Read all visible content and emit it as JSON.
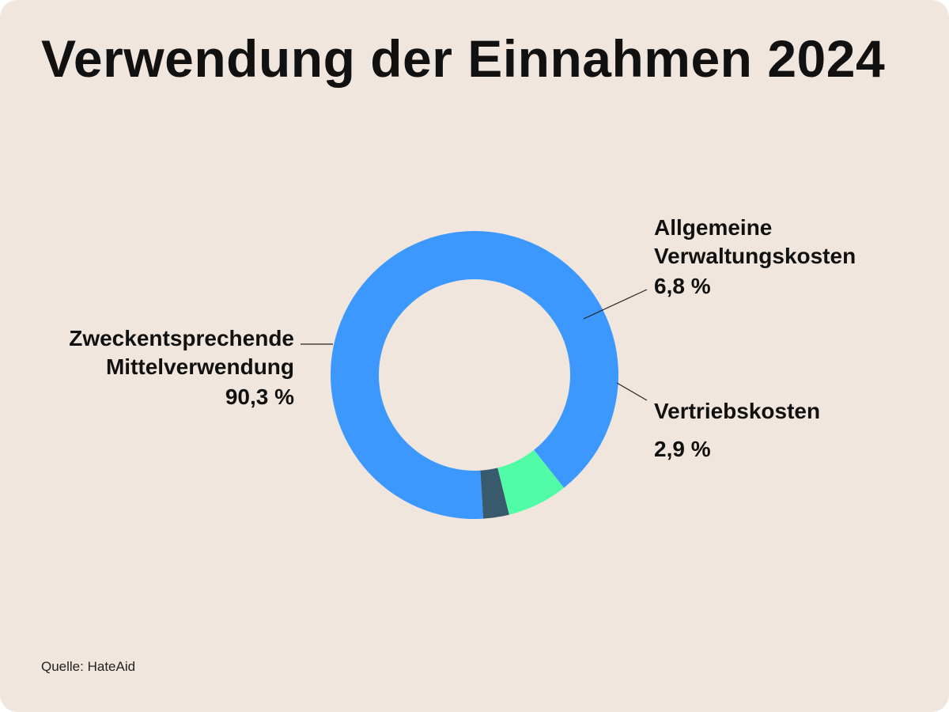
{
  "title": "Verwendung der Einnahmen 2024",
  "source": "Quelle: HateAid",
  "chart_data": {
    "type": "pie",
    "variant": "donut",
    "title": "Verwendung der Einnahmen 2024",
    "categories": [
      "Zweckentsprechende Mittelverwendung",
      "Allgemeine Verwaltungskosten",
      "Vertriebskosten"
    ],
    "values": [
      90.3,
      6.8,
      2.9
    ],
    "unit": "%",
    "colors": [
      "#3d98fd",
      "#52fba5",
      "#395a6d"
    ],
    "slices": [
      {
        "label_lines": [
          "Zweckentsprechende",
          "Mittelverwendung"
        ],
        "value_text": "90,3 %"
      },
      {
        "label_lines": [
          "Allgemeine",
          "Verwaltungskosten"
        ],
        "value_text": "6,8 %"
      },
      {
        "label_lines": [
          "Vertriebskosten"
        ],
        "value_text": "2,9 %"
      }
    ],
    "source": "Quelle: HateAid"
  }
}
